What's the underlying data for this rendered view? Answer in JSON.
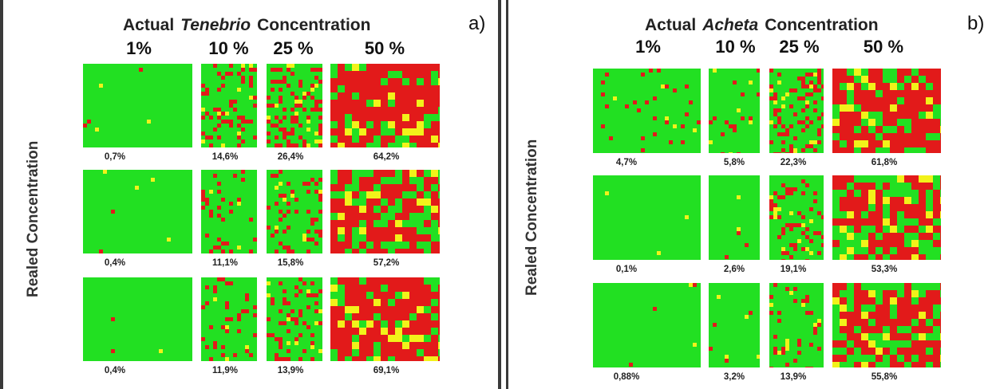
{
  "colors": {
    "clean": "#22e022",
    "contaminant": "#e21a1a",
    "mixed": "#f2f21a",
    "background": "#ffffff"
  },
  "panels": [
    {
      "id": "a",
      "tag": "a)",
      "title": {
        "prefix": "Actual",
        "species": "Tenebrio",
        "suffix": "Concentration"
      },
      "ylabel": "Realed Concentration",
      "columns": [
        "1%",
        "10 %",
        "25 %",
        "50 %"
      ],
      "actual_levels": [
        1,
        10,
        25,
        50
      ],
      "rows": [
        {
          "values": [
            "0,7%",
            "14,6%",
            "26,4%",
            "64,2%"
          ],
          "fractions": [
            0.007,
            0.146,
            0.264,
            0.642
          ]
        },
        {
          "values": [
            "0,4%",
            "11,1%",
            "15,8%",
            "57,2%"
          ],
          "fractions": [
            0.004,
            0.111,
            0.158,
            0.572
          ]
        },
        {
          "values": [
            "0,4%",
            "11,9%",
            "13,9%",
            "69,1%"
          ],
          "fractions": [
            0.004,
            0.119,
            0.139,
            0.691
          ]
        }
      ]
    },
    {
      "id": "b",
      "tag": "b)",
      "title": {
        "prefix": "Actual",
        "species": "Acheta",
        "suffix": "Concentration"
      },
      "ylabel": "Realed Concentration",
      "columns": [
        "1%",
        "10 %",
        "25 %",
        "50 %"
      ],
      "actual_levels": [
        1,
        10,
        25,
        50
      ],
      "rows": [
        {
          "values": [
            "4,7%",
            "5,8%",
            "22,3%",
            "61,8%"
          ],
          "fractions": [
            0.047,
            0.058,
            0.223,
            0.618
          ]
        },
        {
          "values": [
            "0,1%",
            "2,6%",
            "19,1%",
            "53,3%"
          ],
          "fractions": [
            0.001,
            0.026,
            0.191,
            0.533
          ]
        },
        {
          "values": [
            "0,88%",
            "3,2%",
            "13,9%",
            "55,8%"
          ],
          "fractions": [
            0.0088,
            0.032,
            0.139,
            0.558
          ]
        }
      ]
    }
  ]
}
